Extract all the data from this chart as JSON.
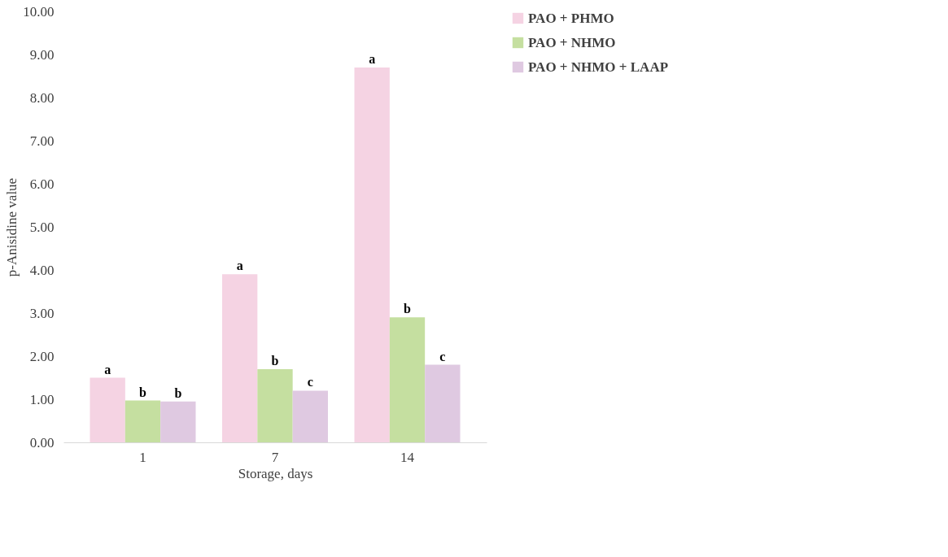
{
  "chart_data": {
    "type": "bar",
    "xlabel": "Storage, days",
    "ylabel": "p-Anisidine value",
    "categories": [
      "1",
      "7",
      "14"
    ],
    "series": [
      {
        "name": "PAO + PHMO",
        "color": "#f5d3e3",
        "values": [
          1.5,
          3.9,
          8.7
        ],
        "value_labels": [
          "a",
          "a",
          "a"
        ]
      },
      {
        "name": "PAO + NHMO",
        "color": "#c5dfa0",
        "values": [
          0.97,
          1.7,
          2.9
        ],
        "value_labels": [
          "b",
          "b",
          "b"
        ]
      },
      {
        "name": "PAO + NHMO + LAAP",
        "color": "#dfc9e1",
        "values": [
          0.95,
          1.2,
          1.8
        ],
        "value_labels": [
          "b",
          "c",
          "c"
        ]
      }
    ],
    "ylim": [
      0,
      10
    ],
    "yticks": [
      {
        "value": 0,
        "label": "0.00"
      },
      {
        "value": 1,
        "label": "1.00"
      },
      {
        "value": 2,
        "label": "2.00"
      },
      {
        "value": 3,
        "label": "3.00"
      },
      {
        "value": 4,
        "label": "4.00"
      },
      {
        "value": 5,
        "label": "5.00"
      },
      {
        "value": 6,
        "label": "6.00"
      },
      {
        "value": 7,
        "label": "7.00"
      },
      {
        "value": 8,
        "label": "8.00"
      },
      {
        "value": 9,
        "label": "9.00"
      },
      {
        "value": 10,
        "label": "10.00"
      }
    ],
    "grid": false,
    "legend": "right"
  }
}
